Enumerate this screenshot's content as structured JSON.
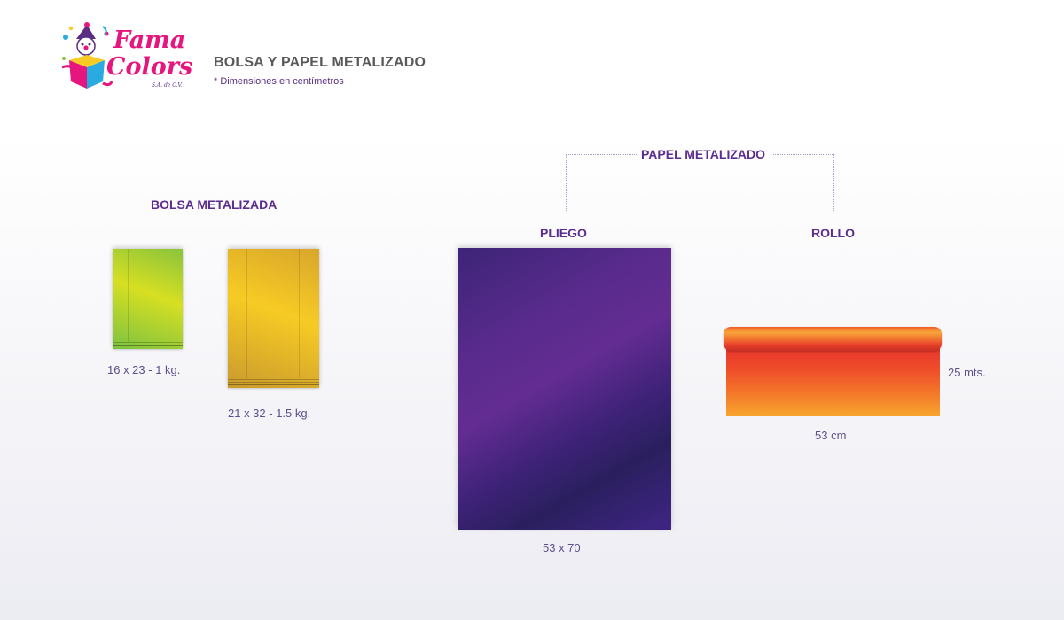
{
  "brand": {
    "name_line1": "Fama",
    "name_line2": "Colors",
    "suffix": "S.A. de C.V.",
    "colors": {
      "pink": "#e5177e",
      "purple": "#5a2d82",
      "yellow": "#f7cb24",
      "cyan": "#29abe2"
    }
  },
  "header": {
    "title": "BOLSA Y PAPEL METALIZADO",
    "subtitle": "* Dimensiones en centímetros"
  },
  "bolsa": {
    "title": "BOLSA METALIZADA",
    "items": [
      {
        "caption": "16 x 23 - 1 kg.",
        "color": "#d7df22"
      },
      {
        "caption": "21 x 32 - 1.5 kg.",
        "color": "#f7cb24"
      }
    ]
  },
  "papel": {
    "title": "PAPEL METALIZADO",
    "pliego": {
      "title": "PLIEGO",
      "caption": "53 x 70",
      "color": "#5a2b8d"
    },
    "rollo": {
      "title": "ROLLO",
      "width_caption": "53 cm",
      "length_caption": "25 mts.",
      "color": "#f15a29"
    }
  }
}
